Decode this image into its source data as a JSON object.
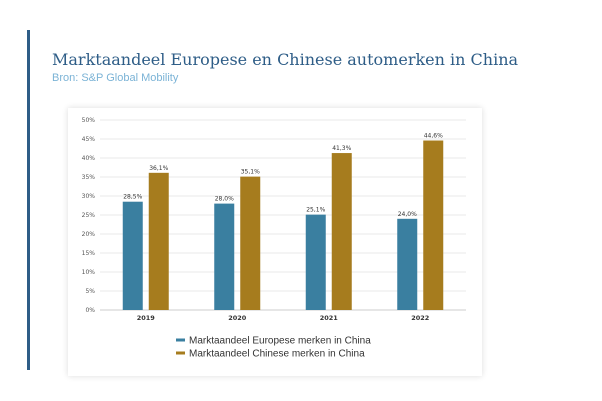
{
  "header": {
    "title": "Marktaandeel Europese en Chinese automerken in China",
    "subtitle": "Bron: S&P Global Mobility"
  },
  "colors": {
    "accent": "#2e5d87",
    "subtitle": "#7bb3d6",
    "series_europe": "#3a7fa0",
    "series_china": "#a67c1e"
  },
  "chart_data": {
    "type": "bar",
    "categories": [
      "2019",
      "2020",
      "2021",
      "2022"
    ],
    "series": [
      {
        "name": "Marktaandeel Europese merken in China",
        "values": [
          28.5,
          28.0,
          25.1,
          24.0
        ],
        "labels": [
          "28,5%",
          "28,0%",
          "25,1%",
          "24,0%"
        ]
      },
      {
        "name": "Marktaandeel Chinese merken in China",
        "values": [
          36.1,
          35.1,
          41.3,
          44.6
        ],
        "labels": [
          "36,1%",
          "35,1%",
          "41,3%",
          "44,6%"
        ]
      }
    ],
    "ylim": [
      0,
      50
    ],
    "yticks": [
      "0%",
      "5%",
      "10%",
      "15%",
      "20%",
      "25%",
      "30%",
      "35%",
      "40%",
      "45%",
      "50%"
    ],
    "grid": true,
    "legend": "bottom"
  }
}
